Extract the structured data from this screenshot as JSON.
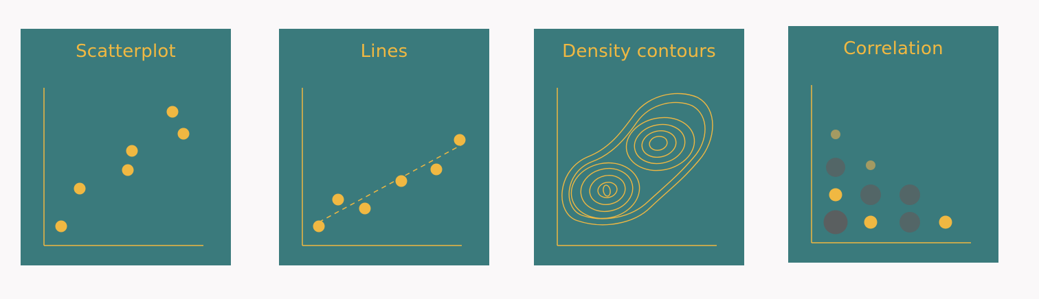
{
  "colors": {
    "background": "#faf8f9",
    "card": "#3a7a7c",
    "accent": "#f0b842",
    "muted_dark": "#4f5e60",
    "muted_gray": "#5a6a6c",
    "muted_olive": "#a39a62"
  },
  "cards": [
    {
      "title": "Scatterplot"
    },
    {
      "title": "Lines"
    },
    {
      "title": "Density contours"
    },
    {
      "title": "Correlation"
    }
  ]
}
